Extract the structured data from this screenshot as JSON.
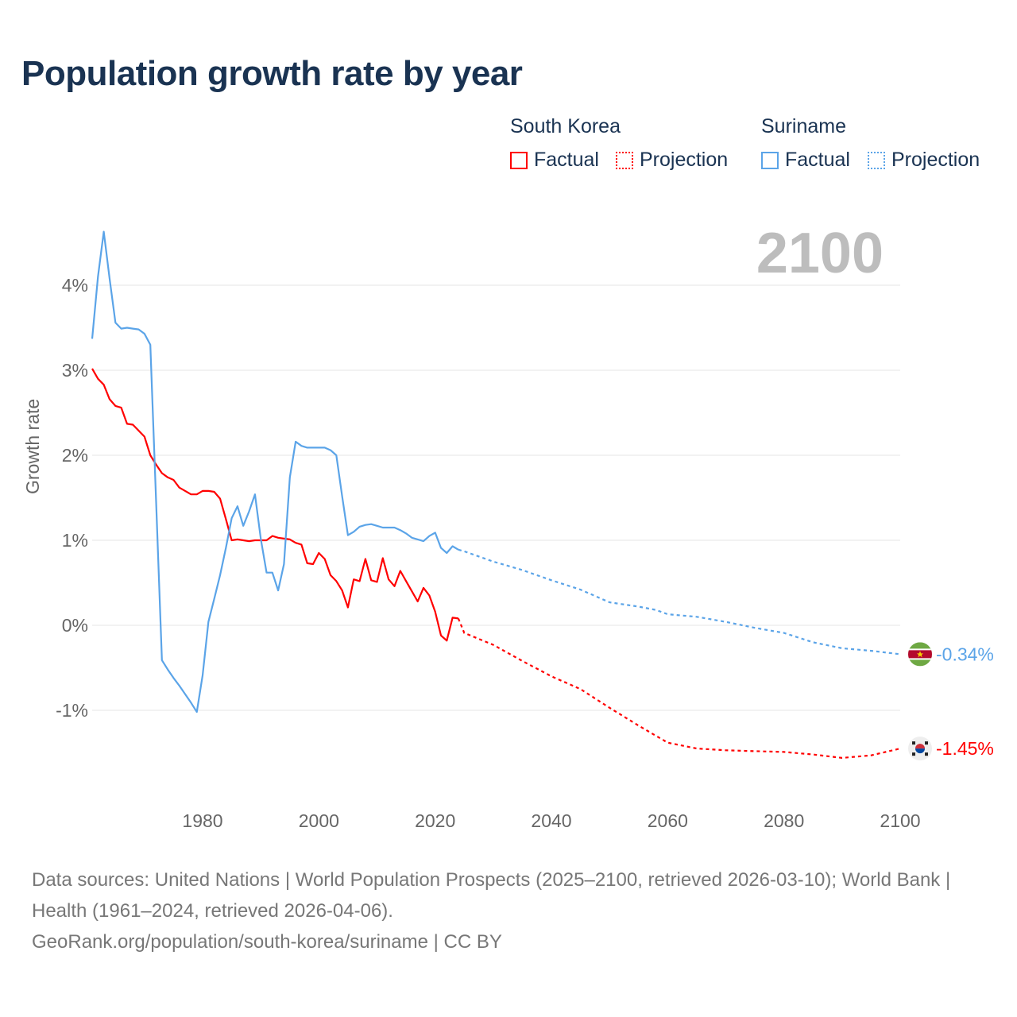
{
  "title": "Population growth rate by year",
  "current_year": "2100",
  "legend": {
    "groups": [
      {
        "name": "South Korea",
        "factual": "Factual",
        "projection": "Projection",
        "color": "#ff0000"
      },
      {
        "name": "Suriname",
        "factual": "Factual",
        "projection": "Projection",
        "color": "#5ba4e8"
      }
    ]
  },
  "footer": {
    "sources": "Data sources: United Nations | World Population Prospects (2025–2100, retrieved 2026-03-10); World Bank | Health (1961–2024, retrieved 2026-04-06).",
    "link": "GeoRank.org/population/south-korea/suriname | CC BY"
  },
  "chart_data": {
    "type": "line",
    "title": "Population growth rate by year",
    "xlabel": "",
    "ylabel": "Growth rate",
    "xlim": [
      1961,
      2100
    ],
    "ylim": [
      -2,
      4.6
    ],
    "x_ticks": [
      1980,
      2000,
      2020,
      2040,
      2060,
      2080,
      2100
    ],
    "x_tick_labels": [
      "1980",
      "2000",
      "2020",
      "2040",
      "2060",
      "2080",
      "2100"
    ],
    "y_ticks": [
      4,
      3,
      2,
      1,
      0,
      -1
    ],
    "y_tick_labels": [
      "4%",
      "3%",
      "2%",
      "1%",
      "0%",
      "-1%"
    ],
    "grid": true,
    "legend_position": "top-right",
    "series": [
      {
        "name": "South Korea",
        "color": "#ff0000",
        "end_label": "-1.45%",
        "flag": "south-korea-flag",
        "factual": {
          "x": [
            1961,
            1962,
            1963,
            1964,
            1965,
            1966,
            1967,
            1968,
            1969,
            1970,
            1971,
            1972,
            1973,
            1974,
            1975,
            1976,
            1977,
            1978,
            1979,
            1980,
            1981,
            1982,
            1983,
            1984,
            1985,
            1986,
            1987,
            1988,
            1989,
            1990,
            1991,
            1992,
            1993,
            1994,
            1995,
            1996,
            1997,
            1998,
            1999,
            2000,
            2001,
            2002,
            2003,
            2004,
            2005,
            2006,
            2007,
            2008,
            2009,
            2010,
            2011,
            2012,
            2013,
            2014,
            2015,
            2016,
            2017,
            2018,
            2019,
            2020,
            2021,
            2022,
            2023,
            2024
          ],
          "y": [
            3.02,
            2.9,
            2.83,
            2.66,
            2.58,
            2.56,
            2.37,
            2.36,
            2.29,
            2.22,
            2.0,
            1.89,
            1.79,
            1.74,
            1.71,
            1.62,
            1.58,
            1.54,
            1.54,
            1.58,
            1.58,
            1.57,
            1.49,
            1.25,
            1.0,
            1.01,
            1.0,
            0.99,
            1.0,
            1.0,
            1.0,
            1.05,
            1.03,
            1.02,
            1.01,
            0.97,
            0.95,
            0.73,
            0.72,
            0.85,
            0.78,
            0.59,
            0.52,
            0.41,
            0.21,
            0.54,
            0.52,
            0.78,
            0.53,
            0.51,
            0.79,
            0.54,
            0.46,
            0.64,
            0.52,
            0.4,
            0.28,
            0.44,
            0.35,
            0.16,
            -0.12,
            -0.18,
            0.09,
            0.08
          ]
        },
        "projection": {
          "x": [
            2024,
            2025,
            2030,
            2035,
            2040,
            2045,
            2050,
            2055,
            2060,
            2065,
            2070,
            2075,
            2080,
            2085,
            2090,
            2095,
            2100
          ],
          "y": [
            0.08,
            -0.09,
            -0.23,
            -0.42,
            -0.6,
            -0.75,
            -0.97,
            -1.18,
            -1.38,
            -1.45,
            -1.47,
            -1.48,
            -1.49,
            -1.52,
            -1.56,
            -1.53,
            -1.45
          ]
        }
      },
      {
        "name": "Suriname",
        "color": "#5ba4e8",
        "end_label": "-0.34%",
        "flag": "suriname-flag",
        "factual": {
          "x": [
            1961,
            1962,
            1963,
            1964,
            1965,
            1966,
            1967,
            1968,
            1969,
            1970,
            1971,
            1972,
            1973,
            1974,
            1975,
            1976,
            1977,
            1978,
            1979,
            1980,
            1981,
            1982,
            1983,
            1984,
            1985,
            1986,
            1987,
            1988,
            1989,
            1990,
            1991,
            1992,
            1993,
            1994,
            1995,
            1996,
            1997,
            1998,
            1999,
            2000,
            2001,
            2002,
            2003,
            2004,
            2005,
            2006,
            2007,
            2008,
            2009,
            2010,
            2011,
            2012,
            2013,
            2014,
            2015,
            2016,
            2017,
            2018,
            2019,
            2020,
            2021,
            2022,
            2023,
            2024
          ],
          "y": [
            3.37,
            4.1,
            4.63,
            4.08,
            3.56,
            3.49,
            3.5,
            3.49,
            3.48,
            3.43,
            3.3,
            1.45,
            -0.41,
            -0.52,
            -0.62,
            -0.71,
            -0.81,
            -0.91,
            -1.02,
            -0.59,
            0.04,
            0.31,
            0.59,
            0.91,
            1.26,
            1.4,
            1.17,
            1.34,
            1.54,
            1.02,
            0.62,
            0.62,
            0.41,
            0.72,
            1.74,
            2.16,
            2.11,
            2.09,
            2.09,
            2.09,
            2.09,
            2.06,
            2.0,
            1.52,
            1.06,
            1.1,
            1.16,
            1.18,
            1.19,
            1.17,
            1.15,
            1.15,
            1.15,
            1.12,
            1.08,
            1.03,
            1.01,
            0.99,
            1.05,
            1.09,
            0.91,
            0.85,
            0.93,
            0.89
          ]
        },
        "projection": {
          "x": [
            2024,
            2025,
            2030,
            2035,
            2040,
            2045,
            2050,
            2055,
            2058,
            2060,
            2065,
            2070,
            2075,
            2080,
            2085,
            2090,
            2095,
            2100
          ],
          "y": [
            0.89,
            0.87,
            0.75,
            0.65,
            0.53,
            0.42,
            0.27,
            0.22,
            0.18,
            0.13,
            0.1,
            0.04,
            -0.03,
            -0.09,
            -0.2,
            -0.27,
            -0.3,
            -0.34
          ]
        }
      }
    ]
  }
}
